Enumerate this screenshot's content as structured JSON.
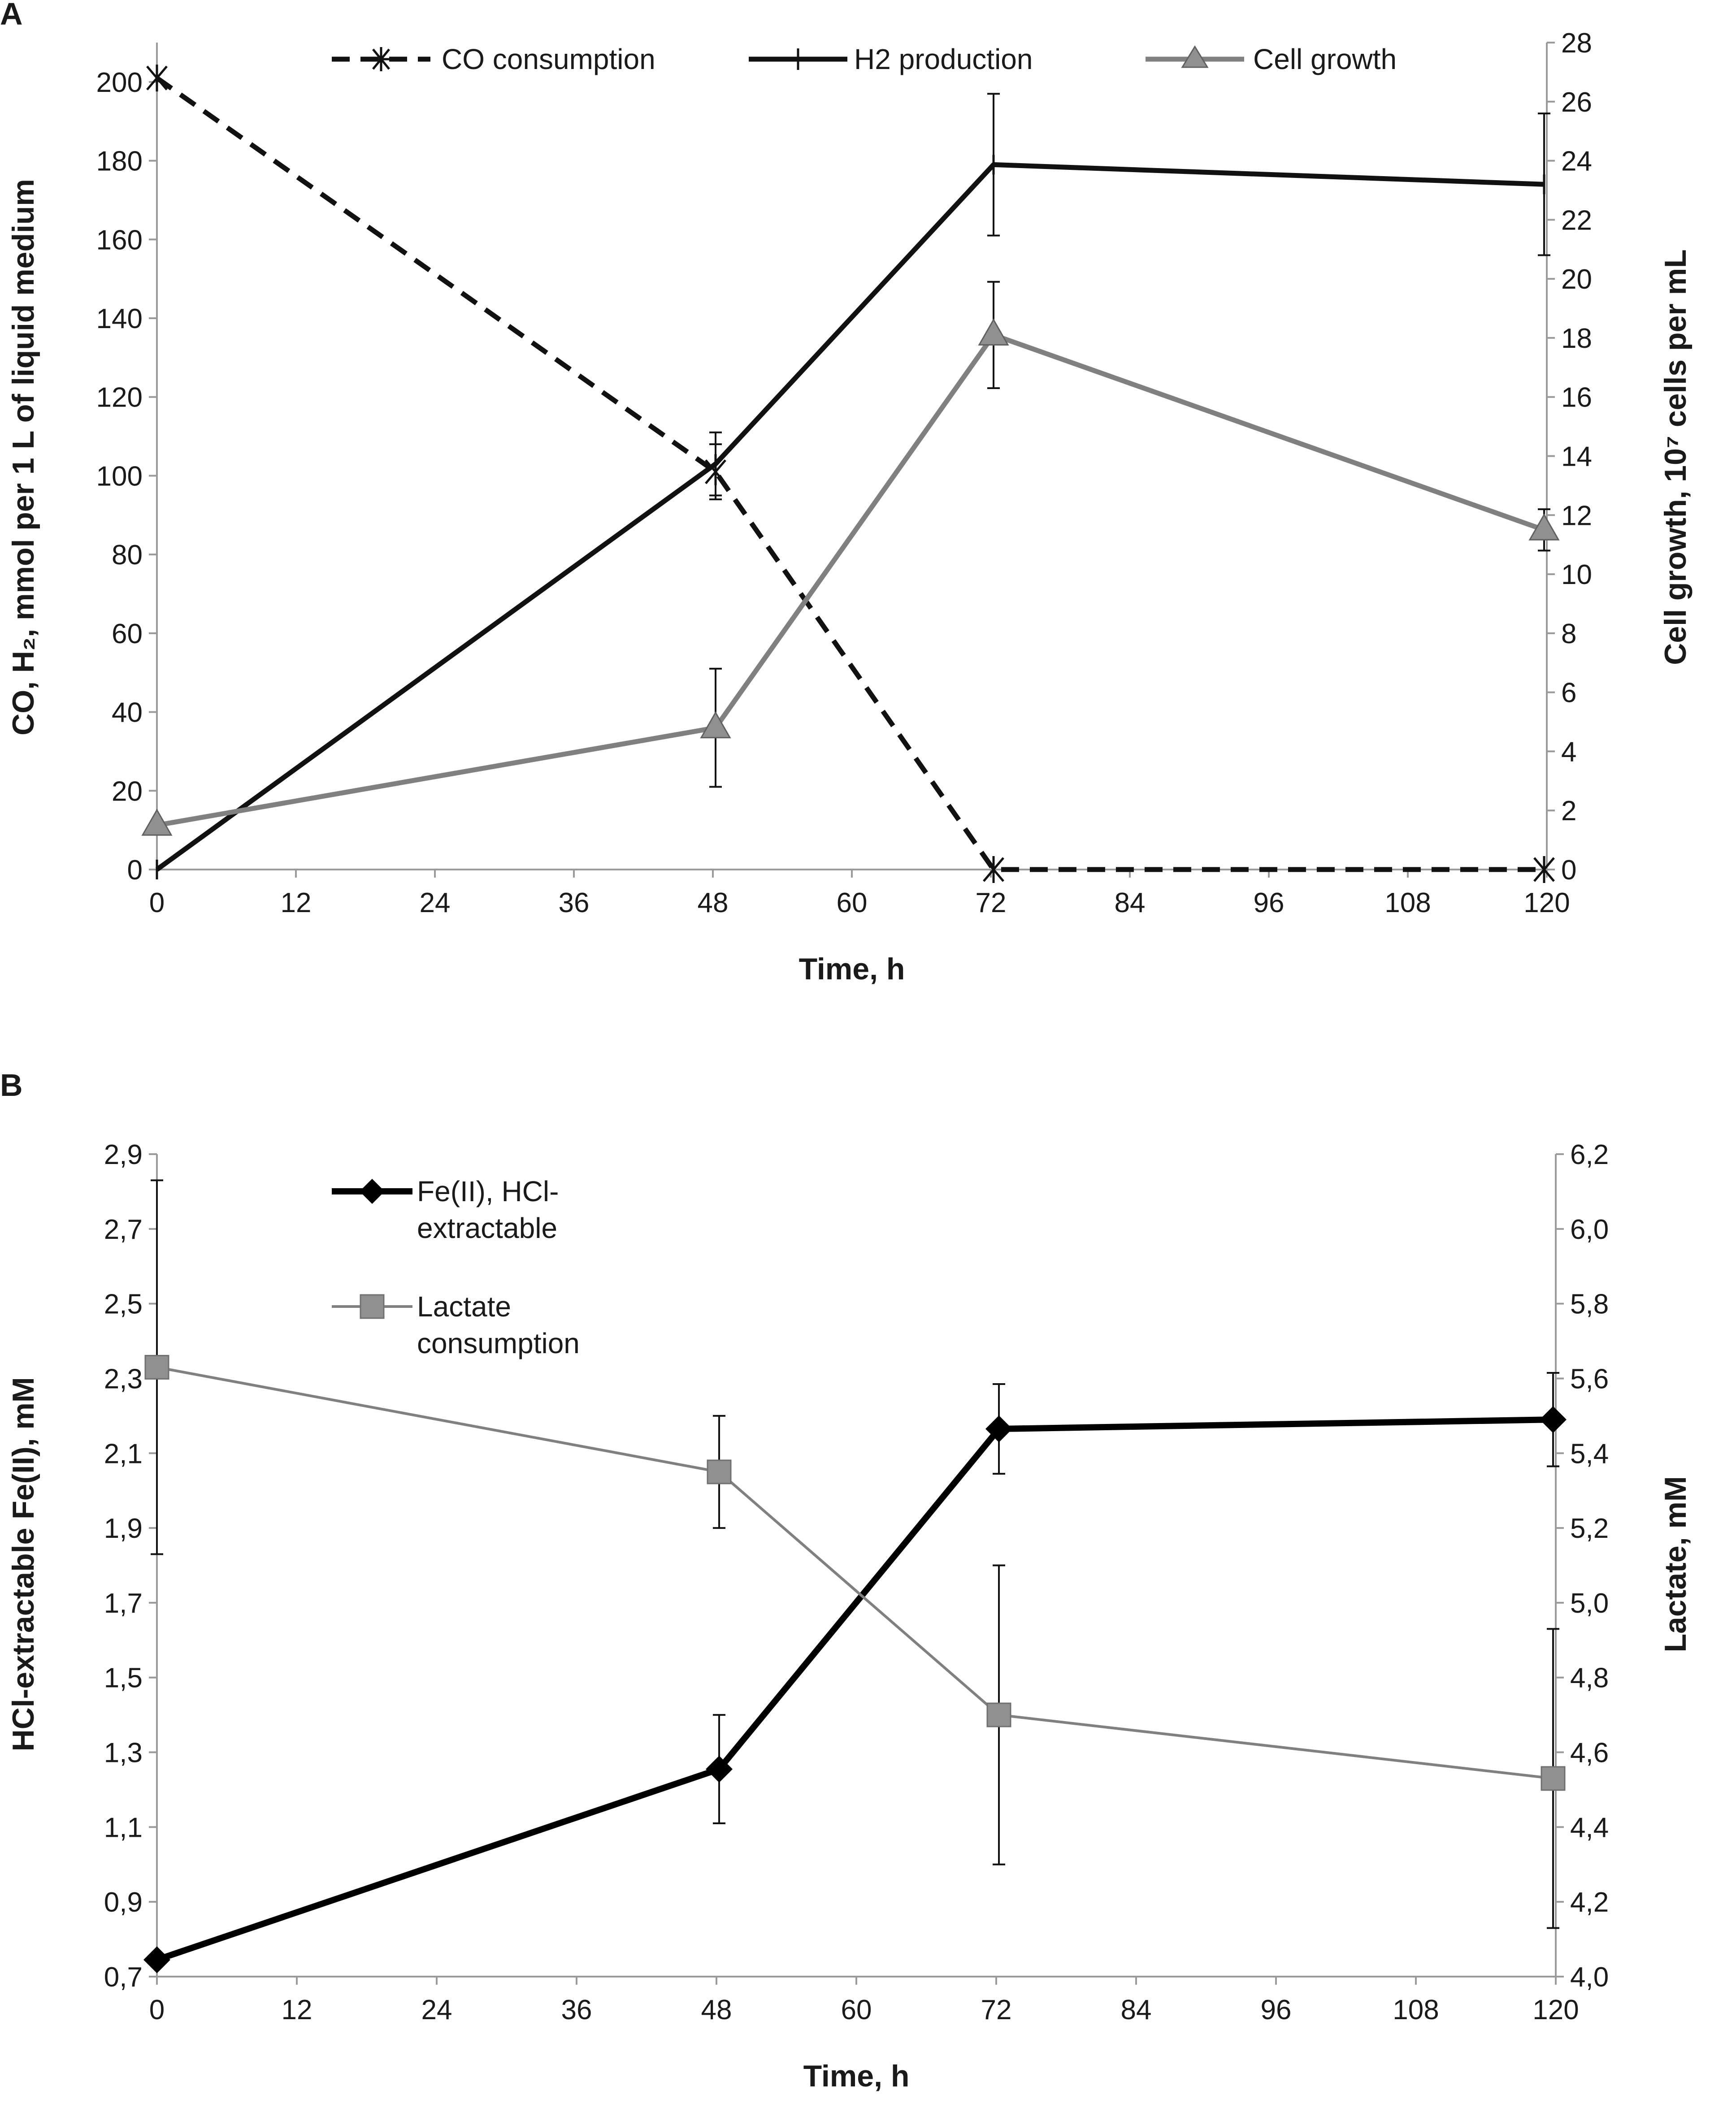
{
  "chart_data": [
    {
      "panel": "A",
      "type": "line",
      "xlabel": "Time, h",
      "ylabel": "CO, H₂, mmol per 1 L of liquid medium",
      "y2label": "Cell growth, 10⁷ cells per mL",
      "xlim": [
        0,
        120
      ],
      "ylim": [
        0,
        210
      ],
      "y2lim": [
        0,
        28
      ],
      "xticks": [
        "0",
        "12",
        "24",
        "36",
        "48",
        "60",
        "72",
        "84",
        "96",
        "108",
        "120"
      ],
      "yticks": [
        "0",
        "20",
        "40",
        "60",
        "80",
        "100",
        "120",
        "140",
        "160",
        "180",
        "200"
      ],
      "y2ticks": [
        "0",
        "2",
        "4",
        "6",
        "8",
        "10",
        "12",
        "14",
        "16",
        "18",
        "20",
        "22",
        "24",
        "26",
        "28"
      ],
      "series": [
        {
          "name": "CO consumption",
          "axis": "left",
          "style": "dashed",
          "marker": "asterisk",
          "color": "#111111",
          "x": [
            0,
            48,
            72,
            120
          ],
          "values": [
            201,
            101,
            0,
            0
          ],
          "errors": [
            0,
            7,
            0,
            0
          ]
        },
        {
          "name": "H2 production",
          "axis": "left",
          "style": "solid",
          "marker": "plus",
          "color": "#111111",
          "x": [
            0,
            48,
            72,
            120
          ],
          "values": [
            0,
            103,
            179,
            174
          ],
          "errors": [
            0,
            8,
            18,
            18
          ]
        },
        {
          "name": "Cell growth",
          "axis": "right",
          "style": "solid",
          "marker": "triangle",
          "color": "#808080",
          "x": [
            0,
            48,
            72,
            120
          ],
          "values": [
            1.5,
            4.8,
            18.1,
            11.5
          ],
          "errors": [
            0,
            2.0,
            1.8,
            0.7
          ]
        }
      ]
    },
    {
      "panel": "B",
      "type": "line",
      "xlabel": "Time, h",
      "ylabel": "HCl-extractable Fe(II), mM",
      "y2label": "Lactate, mM",
      "xlim": [
        0,
        120
      ],
      "ylim": [
        0.7,
        2.9
      ],
      "y2lim": [
        4.0,
        6.2
      ],
      "xticks": [
        "0",
        "12",
        "24",
        "36",
        "48",
        "60",
        "72",
        "84",
        "96",
        "108",
        "120"
      ],
      "yticks": [
        "0,7",
        "0,9",
        "1,1",
        "1,3",
        "1,5",
        "1,7",
        "1,9",
        "2,1",
        "2,3",
        "2,5",
        "2,7",
        "2,9"
      ],
      "y2ticks": [
        "4,0",
        "4,2",
        "4,4",
        "4,6",
        "4,8",
        "5,0",
        "5,2",
        "5,4",
        "5,6",
        "5,8",
        "6,0",
        "6,2"
      ],
      "series": [
        {
          "name": "Fe(II), HCl-extractable",
          "legend_lines": [
            "Fe(II), HCl-",
            "extractable"
          ],
          "axis": "left",
          "style": "solid",
          "marker": "diamond",
          "color": "#000000",
          "x": [
            0,
            48,
            72,
            120
          ],
          "values": [
            0.745,
            1.255,
            2.165,
            2.19
          ],
          "errors": [
            0,
            0.145,
            0.12,
            0.125
          ]
        },
        {
          "name": "Lactate consumption",
          "legend_lines": [
            "Lactate",
            "consumption"
          ],
          "axis": "right",
          "style": "solid",
          "marker": "square",
          "color": "#808080",
          "x": [
            0,
            48,
            72,
            120
          ],
          "values": [
            5.63,
            5.35,
            4.7,
            4.53
          ],
          "errors": [
            0.5,
            0.15,
            0.4,
            0.4
          ]
        }
      ]
    }
  ]
}
